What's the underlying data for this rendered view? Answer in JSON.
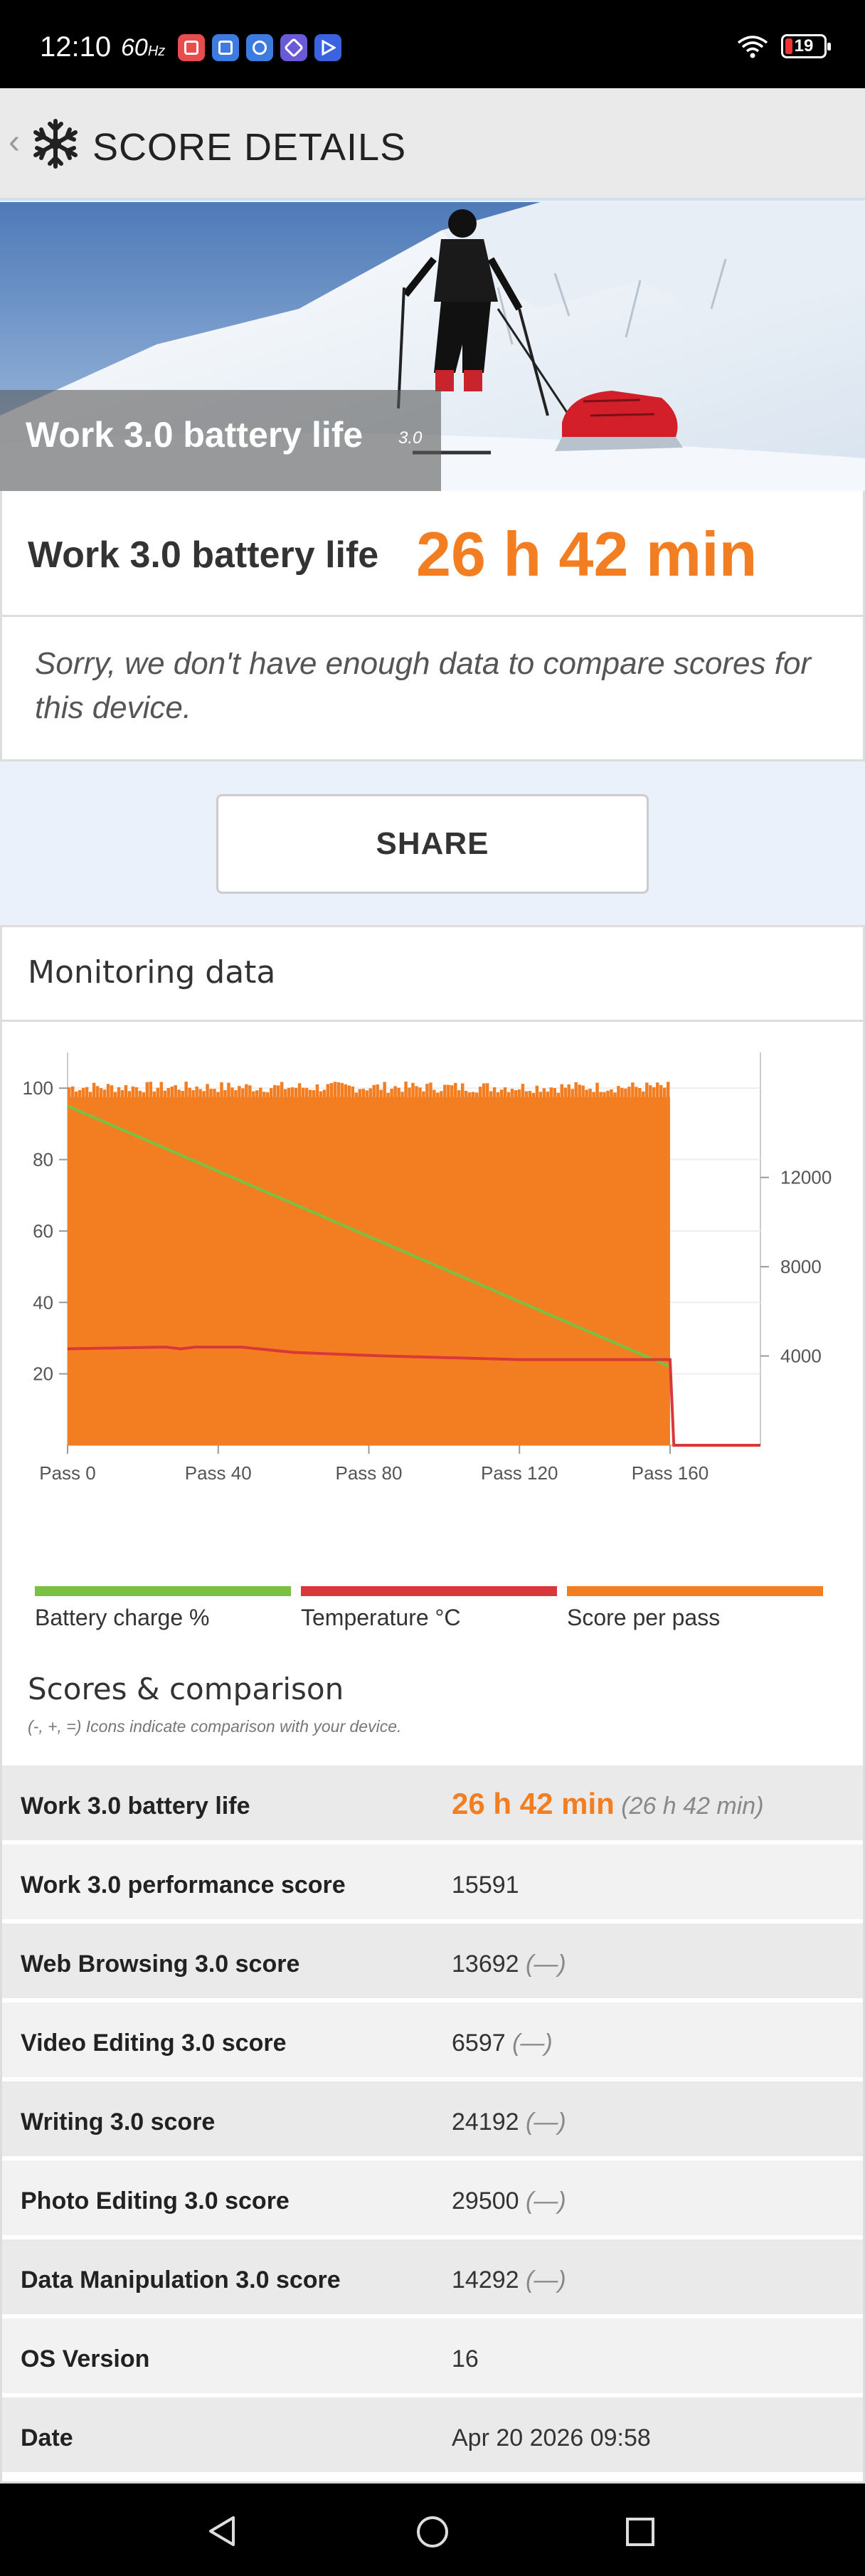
{
  "status_bar": {
    "time": "12:10",
    "refresh_rate": "60",
    "refresh_unit": "Hz",
    "battery_level": "19",
    "app_icons": [
      {
        "name": "red-app-icon",
        "color": "#e84c4c"
      },
      {
        "name": "blue-app-icon",
        "color": "#3d7be0"
      },
      {
        "name": "gear-app-icon",
        "color": "#3d7be0"
      },
      {
        "name": "purple-app-icon",
        "color": "#6a5ad8"
      },
      {
        "name": "play-app-icon",
        "color": "#3b63e0"
      }
    ]
  },
  "header": {
    "title": "SCORE DETAILS"
  },
  "hero": {
    "title": "Work 3.0 battery life",
    "version": "3.0"
  },
  "result": {
    "label": "Work 3.0 battery life",
    "value": "26 h 42 min",
    "note": "Sorry, we don't have enough data to compare scores for this device."
  },
  "share": {
    "label": "SHARE"
  },
  "monitoring": {
    "title": "Monitoring data"
  },
  "chart_data": {
    "type": "line",
    "x_tick_labels": [
      "Pass 0",
      "Pass 40",
      "Pass 80",
      "Pass 120",
      "Pass 160"
    ],
    "xlim": [
      0,
      184
    ],
    "left_axis": {
      "ticks": [
        20,
        40,
        60,
        80,
        100
      ],
      "ylim": [
        0,
        110
      ]
    },
    "right_axis": {
      "ticks": [
        4000,
        8000,
        12000
      ],
      "ylim": [
        0,
        17600
      ]
    },
    "series": [
      {
        "name": "Battery charge %",
        "axis": "left",
        "color": "#7ac143",
        "x": [
          0,
          160
        ],
        "y": [
          95,
          22
        ]
      },
      {
        "name": "Temperature °C",
        "axis": "left",
        "color": "#d9383a",
        "x": [
          0,
          26,
          30,
          34,
          40,
          46,
          60,
          84,
          120,
          160,
          161,
          184
        ],
        "y": [
          27,
          27.5,
          27,
          27.5,
          27.5,
          27.5,
          26,
          25,
          24,
          24,
          0,
          0
        ]
      },
      {
        "name": "Score per pass",
        "axis": "right",
        "color": "#f37e21",
        "x": [
          0,
          160
        ],
        "y": [
          15600,
          15600
        ],
        "style": "bars"
      }
    ],
    "legend_placement": "bottom",
    "grid": true
  },
  "legend": [
    {
      "label": "Battery charge %",
      "color": "#7ac143"
    },
    {
      "label": "Temperature °C",
      "color": "#d9383a"
    },
    {
      "label": "Score per pass",
      "color": "#f37e21"
    }
  ],
  "scores": {
    "title": "Scores & comparison",
    "subtitle": "(-, +, =) Icons indicate comparison with your device.",
    "rows": [
      {
        "label": "Work 3.0 battery life",
        "value": "26 h 42 min",
        "compare": "(26 h 42 min)"
      },
      {
        "label": "Work 3.0 performance score",
        "value": "15591",
        "compare": ""
      },
      {
        "label": "Web Browsing 3.0 score",
        "value": "13692",
        "compare": "(—)"
      },
      {
        "label": "Video Editing 3.0 score",
        "value": "6597",
        "compare": "(—)"
      },
      {
        "label": "Writing 3.0 score",
        "value": "24192",
        "compare": "(—)"
      },
      {
        "label": "Photo Editing 3.0 score",
        "value": "29500",
        "compare": "(—)"
      },
      {
        "label": "Data Manipulation 3.0 score",
        "value": "14292",
        "compare": "(—)"
      },
      {
        "label": "OS Version",
        "value": "16",
        "compare": ""
      },
      {
        "label": "Date",
        "value": "Apr 20 2026 09:58",
        "compare": ""
      }
    ]
  }
}
